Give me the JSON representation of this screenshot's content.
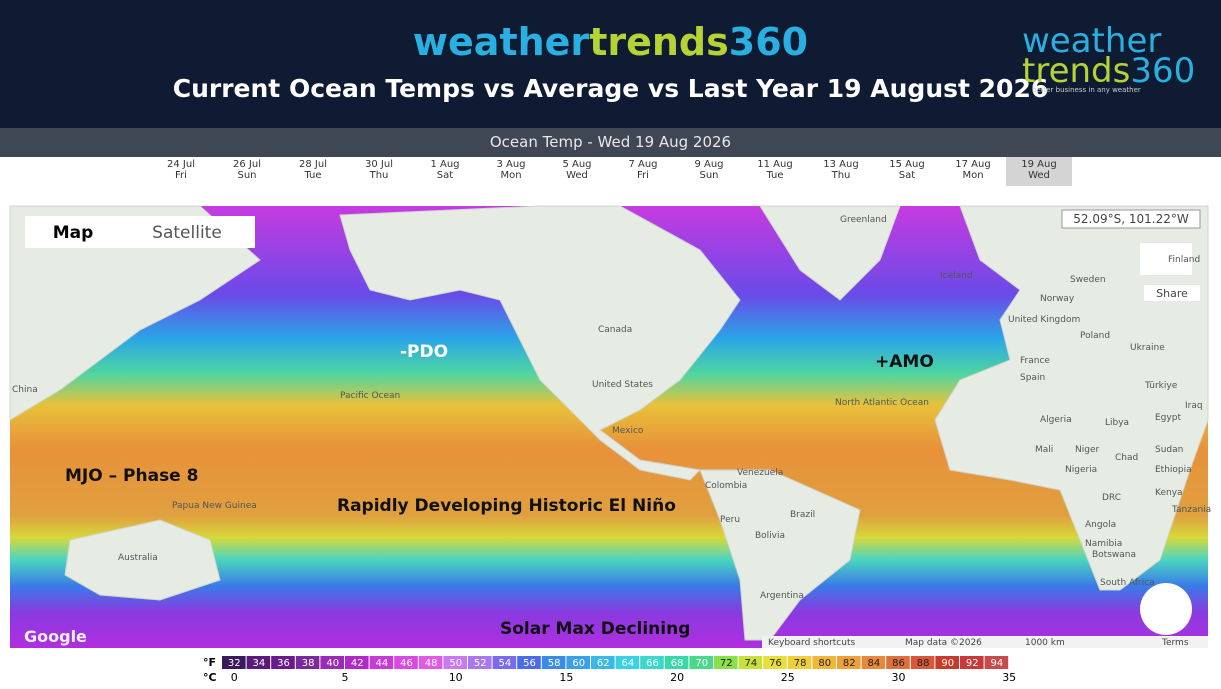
{
  "header": {
    "brand": [
      "weather",
      "trends",
      "360"
    ],
    "title": "Current Ocean Temps vs Average vs Last Year 19 August 2026",
    "logo": [
      "weather",
      "trends",
      "360"
    ],
    "logo_tagline": "better business in any weather"
  },
  "toolbar": {
    "title": "Ocean Temp - Wed 19 Aug 2026",
    "dates": [
      [
        "24 Jul",
        "Fri"
      ],
      [
        "26 Jul",
        "Sun"
      ],
      [
        "28 Jul",
        "Tue"
      ],
      [
        "30 Jul",
        "Thu"
      ],
      [
        "1 Aug",
        "Sat"
      ],
      [
        "3 Aug",
        "Mon"
      ],
      [
        "5 Aug",
        "Wed"
      ],
      [
        "7 Aug",
        "Fri"
      ],
      [
        "9 Aug",
        "Sun"
      ],
      [
        "11 Aug",
        "Tue"
      ],
      [
        "13 Aug",
        "Thu"
      ],
      [
        "15 Aug",
        "Sat"
      ],
      [
        "17 Aug",
        "Mon"
      ],
      [
        "19 Aug",
        "Wed"
      ]
    ],
    "selected": 13
  },
  "map": {
    "buttons": [
      "Map",
      "Satellite"
    ],
    "coordinates": "52.09°S, 101.22°W",
    "share": "Share",
    "places": [
      "Greenland",
      "Iceland",
      "Finland",
      "Sweden",
      "Norway",
      "United Kingdom",
      "Poland",
      "Ukraine",
      "France",
      "Spain",
      "Türkiye",
      "Iraq",
      "Algeria",
      "Libya",
      "Egypt",
      "Mali",
      "Niger",
      "Chad",
      "Sudan",
      "Nigeria",
      "Ethiopia",
      "DRC",
      "Kenya",
      "Tanzania",
      "Angola",
      "Namibia",
      "Botswana",
      "South Africa",
      "Canada",
      "United States",
      "Mexico",
      "Venezuela",
      "Colombia",
      "Peru",
      "Brazil",
      "Bolivia",
      "Argentina",
      "China",
      "Australia",
      "Papua New Guinea",
      "Pacific Ocean",
      "North Atlantic Ocean"
    ],
    "annotations": [
      "-PDO",
      "+AMO",
      "MJO – Phase 8",
      "Rapidly Developing Historic El Niño",
      "Solar Max Declining"
    ],
    "footer": [
      "Google",
      "Keyboard shortcuts",
      "Map data ©2026",
      "1000 km",
      "Terms"
    ]
  },
  "legend": {
    "f_unit": "°F",
    "c_unit": "°C",
    "fahrenheit": [
      32,
      34,
      36,
      38,
      40,
      42,
      44,
      46,
      48,
      50,
      52,
      54,
      56,
      58,
      60,
      62,
      64,
      66,
      68,
      70,
      72,
      74,
      76,
      78,
      80,
      82,
      84,
      86,
      88,
      90,
      92,
      94
    ],
    "colors": [
      "#3a1a5a",
      "#5a1a7a",
      "#6a1a8a",
      "#7a2a9a",
      "#9a2ab8",
      "#b02ac8",
      "#c83ad8",
      "#d84ae0",
      "#e05ae8",
      "#c878f0",
      "#a878f0",
      "#7a6af0",
      "#4a6ae8",
      "#3a8ae8",
      "#3aa0e8",
      "#3ab8e8",
      "#3ad0e8",
      "#3ad8c8",
      "#3ad8a8",
      "#4ad88a",
      "#8ae04a",
      "#c8e03a",
      "#e8e03a",
      "#f0d03a",
      "#f0b83a",
      "#f0a03a",
      "#e8883a",
      "#e0703a",
      "#d8583a",
      "#c83a2a",
      "#c83a3a",
      "#c84a4a"
    ],
    "celsius": [
      0,
      5,
      10,
      15,
      20,
      25,
      30,
      35
    ]
  }
}
